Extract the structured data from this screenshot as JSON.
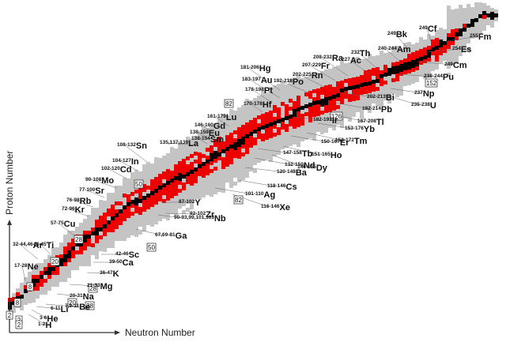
{
  "axes": {
    "x_title": "Neutron Number",
    "y_title": "Proton Number"
  },
  "colors": {
    "predicted": "#c4c4c4",
    "radioactive_known": "#ee0000",
    "stable": "#000000",
    "leader_line": "#666666",
    "axis": "#333333"
  },
  "magic_numbers": [
    "2",
    "8",
    "20",
    "28",
    "50",
    "82",
    "126",
    "152"
  ],
  "element_labels": [
    {
      "iso": "1-2",
      "sym": "H"
    },
    {
      "iso": "3-6",
      "sym": "He"
    },
    {
      "iso": "6-11",
      "sym": "Li"
    },
    {
      "iso": "7,9-11",
      "sym": "Be"
    },
    {
      "iso": "20-31",
      "sym": "Na"
    },
    {
      "iso": "21-33",
      "sym": "Mg"
    },
    {
      "iso": "17-28",
      "sym": "Ne"
    },
    {
      "iso": "36-47",
      "sym": "K"
    },
    {
      "iso": "39-50",
      "sym": "Ca"
    },
    {
      "iso": "42-46",
      "sym": "Sc"
    },
    {
      "iso": "44-45",
      "sym": "Ti"
    },
    {
      "iso": "32-44,46",
      "sym": "Ar"
    },
    {
      "iso": "57-75",
      "sym": "Cu"
    },
    {
      "iso": "67,69-81",
      "sym": "Ga"
    },
    {
      "iso": "72-96",
      "sym": "Kr"
    },
    {
      "iso": "76-98",
      "sym": "Rb"
    },
    {
      "iso": "77-100",
      "sym": "Sr"
    },
    {
      "iso": "90-108",
      "sym": "Mo"
    },
    {
      "iso": "102-120",
      "sym": "Cd"
    },
    {
      "iso": "104-127",
      "sym": "In"
    },
    {
      "iso": "108-132",
      "sym": "Sn"
    },
    {
      "iso": "92-102",
      "sym": "Zr"
    },
    {
      "iso": "87-102",
      "sym": "Y"
    },
    {
      "iso": "90-93,99,101,103",
      "sym": "Nb"
    },
    {
      "iso": "101-110",
      "sym": "Ag"
    },
    {
      "iso": "116-146",
      "sym": "Xe"
    },
    {
      "iso": "118-146",
      "sym": "Cs"
    },
    {
      "iso": "120-148",
      "sym": "Ba"
    },
    {
      "iso": "132-150",
      "sym": "Nd"
    },
    {
      "iso": "147-158",
      "sym": "Tb"
    },
    {
      "iso": "146-165",
      "sym": "Dy"
    },
    {
      "iso": "151-165",
      "sym": "Ho"
    },
    {
      "iso": "150-167",
      "sym": "Er"
    },
    {
      "iso": "153-172",
      "sym": "Tm"
    },
    {
      "iso": "153-176",
      "sym": "Yb"
    },
    {
      "iso": "182-193",
      "sym": "Ir"
    },
    {
      "iso": "187-208",
      "sym": "Tl"
    },
    {
      "iso": "182-214",
      "sym": "Pb"
    },
    {
      "iso": "202-213",
      "sym": "Bi"
    },
    {
      "iso": "235-238",
      "sym": "U"
    },
    {
      "iso": "237",
      "sym": "Np"
    },
    {
      "iso": "238-244",
      "sym": "Pu"
    },
    {
      "iso": "249",
      "sym": "Cm"
    },
    {
      "iso": "254",
      "sym": "Es"
    },
    {
      "iso": "255",
      "sym": "Fm"
    },
    {
      "iso": "249",
      "sym": "Cf"
    },
    {
      "iso": "249",
      "sym": "Bk"
    },
    {
      "iso": "240-244",
      "sym": "Am"
    },
    {
      "iso": "227",
      "sym": "Ac"
    },
    {
      "iso": "232",
      "sym": "Th"
    },
    {
      "iso": "208-232",
      "sym": "Ra"
    },
    {
      "iso": "207-229",
      "sym": "Fr"
    },
    {
      "iso": "202-225",
      "sym": "Rn"
    },
    {
      "iso": "192-218",
      "sym": "Po"
    },
    {
      "iso": "181-206",
      "sym": "Hg"
    },
    {
      "iso": "183-197",
      "sym": "Au"
    },
    {
      "iso": "178-198",
      "sym": "Pt"
    },
    {
      "iso": "170-178",
      "sym": "Hf"
    },
    {
      "iso": "161-179",
      "sym": "Lu"
    },
    {
      "iso": "146-160",
      "sym": "Gd"
    },
    {
      "iso": "138-159",
      "sym": "Eu"
    },
    {
      "iso": "138-154",
      "sym": "Sm"
    },
    {
      "iso": "135,137,139",
      "sym": "La"
    }
  ]
}
